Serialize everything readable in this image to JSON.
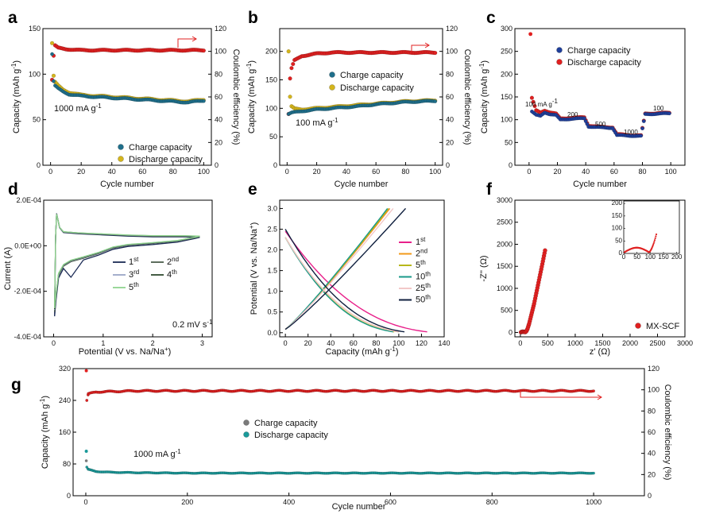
{
  "chart_data": [
    {
      "panel": "a",
      "type": "scatter",
      "xlabel": "Cycle number",
      "ylabel": "Capacity (mAh g⁻¹)",
      "y2label": "Coulombic efficiency (%)",
      "xlim": [
        -5,
        105
      ],
      "ylim": [
        0,
        150
      ],
      "y2lim": [
        0,
        120
      ],
      "xticks": [
        0,
        20,
        40,
        60,
        80,
        100
      ],
      "yticks": [
        0,
        50,
        100,
        150
      ],
      "y2ticks": [
        0,
        20,
        40,
        60,
        80,
        100,
        120
      ],
      "annotation": "1000 mA g⁻¹",
      "legend": [
        "Charge capacity",
        "Discharge capacity"
      ],
      "series": [
        {
          "name": "Charge capacity",
          "color": "#1f6f8b",
          "axis": "left",
          "x": [
            1,
            2,
            3,
            5,
            8,
            12,
            20,
            30,
            40,
            50,
            60,
            70,
            80,
            90,
            100
          ],
          "y": [
            122,
            92,
            87,
            84,
            81,
            78,
            76,
            75,
            74,
            73,
            72,
            71,
            70,
            69,
            71
          ]
        },
        {
          "name": "Discharge capacity",
          "color": "#d4b51c",
          "axis": "left",
          "x": [
            1,
            2,
            3,
            5,
            8,
            12,
            20,
            30,
            40,
            50,
            60,
            70,
            80,
            90,
            100
          ],
          "y": [
            134,
            98,
            91,
            87,
            83,
            80,
            77,
            76,
            75,
            74,
            73,
            72,
            71,
            70,
            72
          ]
        },
        {
          "name": "Coulombic efficiency",
          "color": "#e02020",
          "axis": "right",
          "x": [
            1,
            2,
            3,
            5,
            10,
            20,
            40,
            60,
            80,
            100
          ],
          "y": [
            75,
            96,
            105,
            103,
            102,
            101,
            101,
            101,
            101,
            101
          ]
        }
      ]
    },
    {
      "panel": "b",
      "type": "scatter",
      "xlabel": "Cycle number",
      "ylabel": "Capacity (mAh g⁻¹)",
      "y2label": "Coulombic efficiency (%)",
      "xlim": [
        -5,
        105
      ],
      "ylim": [
        0,
        240
      ],
      "y2lim": [
        0,
        120
      ],
      "xticks": [
        0,
        20,
        40,
        60,
        80,
        100
      ],
      "yticks": [
        0,
        50,
        100,
        150,
        200
      ],
      "y2ticks": [
        0,
        20,
        40,
        60,
        80,
        100,
        120
      ],
      "annotation": "100 mA g⁻¹",
      "legend": [
        "Charge capacity",
        "Discharge capacity"
      ],
      "series": [
        {
          "name": "Charge capacity",
          "color": "#1f6f8b",
          "axis": "left",
          "x": [
            1,
            3,
            5,
            10,
            20,
            30,
            40,
            50,
            60,
            70,
            80,
            90,
            100
          ],
          "y": [
            90,
            92,
            93,
            95,
            98,
            100,
            102,
            104,
            107,
            109,
            111,
            112,
            113
          ]
        },
        {
          "name": "Discharge capacity",
          "color": "#d4b51c",
          "axis": "left",
          "x": [
            1,
            2,
            3,
            5,
            10,
            20,
            30,
            40,
            50,
            60,
            70,
            80,
            90,
            100
          ],
          "y": [
            200,
            120,
            103,
            99,
            98,
            100,
            102,
            104,
            106,
            108,
            110,
            112,
            113,
            114
          ]
        },
        {
          "name": "Coulombic efficiency",
          "color": "#e02020",
          "axis": "right",
          "x": [
            1,
            2,
            3,
            5,
            10,
            20,
            30,
            50,
            70,
            100
          ],
          "y": [
            45,
            76,
            85,
            92,
            96,
            98,
            99,
            99,
            99,
            99
          ]
        }
      ]
    },
    {
      "panel": "c",
      "type": "scatter",
      "xlabel": "Cycle number",
      "ylabel": "Capacity (mAh g⁻¹)",
      "xlim": [
        -10,
        110
      ],
      "ylim": [
        0,
        300
      ],
      "xticks": [
        0,
        20,
        40,
        60,
        80,
        100
      ],
      "yticks": [
        0,
        50,
        100,
        150,
        200,
        250,
        300
      ],
      "annotations": [
        "100 mA g⁻¹",
        "200",
        "500",
        "1000",
        "100"
      ],
      "legend": [
        "Charge capacity",
        "Discharge capacity"
      ],
      "series": [
        {
          "name": "Charge capacity",
          "color": "#1f3f9b",
          "axis": "left",
          "x": [
            2,
            5,
            8,
            11,
            15,
            19,
            22,
            30,
            39,
            42,
            50,
            59,
            62,
            70,
            79,
            82,
            90,
            99
          ],
          "y": [
            118,
            110,
            108,
            116,
            112,
            110,
            100,
            102,
            103,
            85,
            83,
            82,
            66,
            65,
            64,
            112,
            113,
            114
          ]
        },
        {
          "name": "Discharge capacity",
          "color": "#e02020",
          "axis": "left",
          "x": [
            1,
            2,
            5,
            8,
            11,
            15,
            19,
            22,
            30,
            39,
            42,
            50,
            59,
            62,
            70,
            79,
            82,
            90,
            99
          ],
          "y": [
            288,
            148,
            120,
            115,
            120,
            116,
            113,
            102,
            104,
            105,
            87,
            84,
            83,
            68,
            66,
            65,
            113,
            114,
            115
          ]
        }
      ]
    },
    {
      "panel": "d",
      "type": "line",
      "xlabel": "Potential (V vs. Na/Na⁺)",
      "ylabel": "Current (A)",
      "xlim": [
        -0.2,
        3.2
      ],
      "ylim": [
        -0.0004,
        0.0002
      ],
      "xticks": [
        0,
        1,
        2,
        3
      ],
      "yticks": [
        "-4.0E-04",
        "-2.0E-04",
        "0.0E+00",
        "2.0E-04"
      ],
      "annotation": "0.2 mV s⁻¹",
      "legend": [
        "1st",
        "2nd",
        "3rd",
        "4th",
        "5th"
      ],
      "series": [
        {
          "name": "1st",
          "color": "#1b2a55"
        },
        {
          "name": "2nd",
          "color": "#4c5e4c"
        },
        {
          "name": "3rd",
          "color": "#9aa6c6"
        },
        {
          "name": "4th",
          "color": "#2f4a2f"
        },
        {
          "name": "5th",
          "color": "#8fd48f"
        }
      ]
    },
    {
      "panel": "e",
      "type": "line",
      "xlabel": "Capacity (mAh g⁻¹)",
      "ylabel": "Potential (V vs. Na/Na⁺)",
      "xlim": [
        -5,
        140
      ],
      "ylim": [
        -0.1,
        3.2
      ],
      "xticks": [
        0,
        20,
        40,
        60,
        80,
        100,
        120,
        140
      ],
      "yticks": [
        0.0,
        0.5,
        1.0,
        1.5,
        2.0,
        2.5,
        3.0
      ],
      "legend": [
        "1st",
        "2nd",
        "5th",
        "10th",
        "25th",
        "50th"
      ],
      "series": [
        {
          "name": "1st",
          "color": "#e8208a",
          "charge_end": 92,
          "discharge_end": 125
        },
        {
          "name": "2nd",
          "color": "#f29a1a",
          "charge_end": 92,
          "discharge_end": 100
        },
        {
          "name": "5th",
          "color": "#b8b81a",
          "charge_end": 91,
          "discharge_end": 96
        },
        {
          "name": "10th",
          "color": "#1a9a8a",
          "charge_end": 90,
          "discharge_end": 95
        },
        {
          "name": "25th",
          "color": "#f2c8c8",
          "charge_end": 95,
          "discharge_end": 100
        },
        {
          "name": "50th",
          "color": "#10203f",
          "charge_end": 106,
          "discharge_end": 105
        }
      ]
    },
    {
      "panel": "f",
      "type": "scatter",
      "xlabel": "z' (Ω)",
      "ylabel": "-Z'' (Ω)",
      "xlim": [
        -100,
        3000
      ],
      "ylim": [
        -100,
        3000
      ],
      "xticks": [
        0,
        500,
        1000,
        1500,
        2000,
        2500,
        3000
      ],
      "yticks": [
        0,
        500,
        1000,
        1500,
        2000,
        2500,
        3000
      ],
      "inset": {
        "xticks": [
          0,
          50,
          100,
          150,
          200
        ],
        "yticks": [
          0,
          50,
          100,
          150,
          200
        ],
        "xlim": [
          0,
          210
        ],
        "ylim": [
          0,
          210
        ]
      },
      "legend": [
        "MX-SCF"
      ],
      "series": [
        {
          "name": "MX-SCF",
          "color": "#e02020",
          "x": [
            10,
            30,
            50,
            70,
            90,
            110,
            130,
            160,
            200,
            250,
            300,
            350,
            400,
            450
          ],
          "y": [
            5,
            15,
            18,
            12,
            8,
            30,
            80,
            200,
            400,
            650,
            950,
            1250,
            1550,
            1860
          ]
        }
      ]
    },
    {
      "panel": "g",
      "type": "scatter",
      "xlabel": "Cycle number",
      "ylabel": "Capacity (mAh g⁻¹)",
      "y2label": "Coulombic efficiency (%)",
      "xlim": [
        -25,
        1100
      ],
      "ylim": [
        0,
        320
      ],
      "y2lim": [
        0,
        120
      ],
      "xticks": [
        0,
        200,
        400,
        600,
        800,
        1000
      ],
      "yticks": [
        0,
        80,
        160,
        240,
        320
      ],
      "y2ticks": [
        0,
        20,
        40,
        60,
        80,
        100,
        120
      ],
      "annotation": "1000 mA g⁻¹",
      "legend": [
        "Charge capacity",
        "Discharge capacity"
      ],
      "series": [
        {
          "name": "Charge capacity",
          "color": "#7a7a7a",
          "axis": "left",
          "x": [
            1,
            2,
            5,
            20,
            50,
            100,
            200,
            300,
            400,
            500,
            600,
            700,
            800,
            900,
            1000
          ],
          "y": [
            88,
            68,
            64,
            60,
            58,
            57,
            56,
            56,
            56,
            56,
            56,
            56,
            56,
            56,
            56
          ]
        },
        {
          "name": "Discharge capacity",
          "color": "#1a9a9a",
          "axis": "left",
          "x": [
            1,
            2,
            5,
            20,
            50,
            100,
            200,
            300,
            400,
            500,
            600,
            700,
            800,
            900,
            1000
          ],
          "y": [
            112,
            72,
            66,
            61,
            59,
            58,
            57,
            57,
            57,
            57,
            57,
            57,
            57,
            57,
            57
          ]
        },
        {
          "name": "Coulombic efficiency",
          "color": "#e02020",
          "axis": "right",
          "x": [
            1,
            2,
            5,
            20,
            100,
            200,
            400,
            600,
            800,
            1000
          ],
          "y": [
            118,
            90,
            96,
            98,
            99,
            99,
            99,
            99,
            99,
            99
          ]
        }
      ]
    }
  ],
  "labels": {
    "a": "a",
    "b": "b",
    "c": "c",
    "d": "d",
    "e": "e",
    "f": "f",
    "g": "g",
    "cycle": "Cycle number",
    "cap": "Capacity (mAh g",
    "ce": "Coulombic efficiency (%)",
    "charge": "Charge capacity",
    "discharge": "Discharge capacity",
    "current": "Current (A)",
    "potentialV": "Potential (V vs. Na/Na",
    "capacityMah": "Capacity (mAh g",
    "zreal": "z' (Ω)",
    "zimag": "-Z'' (Ω)",
    "mxscf": "MX-SCF",
    "rate": "0.2 mV s",
    "ann_a": "1000 mA g",
    "ann_b": "100 mA g",
    "ann_c1": "100 mA g",
    "ann_c2": "200",
    "ann_c3": "500",
    "ann_c4": "1000",
    "ann_c5": "100",
    "ann_g": "1000 mA g",
    "st": "st",
    "nd": "nd",
    "rd": "rd",
    "th": "th"
  }
}
